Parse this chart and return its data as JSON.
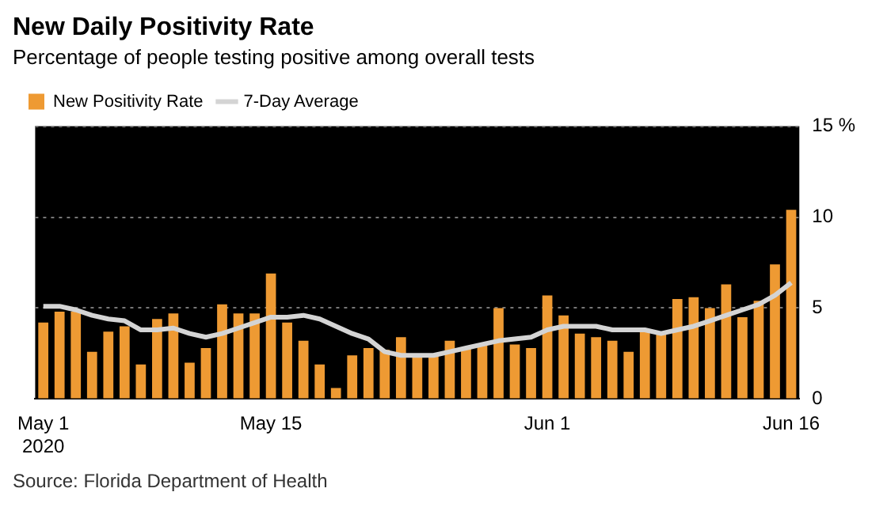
{
  "chart_data": {
    "type": "bar",
    "title": "New Daily Positivity Rate",
    "subtitle": "Percentage of people testing positive among overall tests",
    "x": [
      "2020-05-01",
      "2020-05-02",
      "2020-05-03",
      "2020-05-04",
      "2020-05-05",
      "2020-05-06",
      "2020-05-07",
      "2020-05-08",
      "2020-05-09",
      "2020-05-10",
      "2020-05-11",
      "2020-05-12",
      "2020-05-13",
      "2020-05-14",
      "2020-05-15",
      "2020-05-16",
      "2020-05-17",
      "2020-05-18",
      "2020-05-19",
      "2020-05-20",
      "2020-05-21",
      "2020-05-22",
      "2020-05-23",
      "2020-05-24",
      "2020-05-25",
      "2020-05-26",
      "2020-05-27",
      "2020-05-28",
      "2020-05-29",
      "2020-05-30",
      "2020-05-31",
      "2020-06-01",
      "2020-06-02",
      "2020-06-03",
      "2020-06-04",
      "2020-06-05",
      "2020-06-06",
      "2020-06-07",
      "2020-06-08",
      "2020-06-09",
      "2020-06-10",
      "2020-06-11",
      "2020-06-12",
      "2020-06-13",
      "2020-06-14",
      "2020-06-15",
      "2020-06-16"
    ],
    "series": [
      {
        "name": "New Positivity Rate",
        "color": "#ee9a33",
        "values": [
          4.2,
          4.8,
          4.8,
          2.6,
          3.7,
          4.0,
          1.9,
          4.4,
          4.7,
          2.0,
          2.8,
          5.2,
          4.7,
          4.7,
          6.9,
          4.2,
          3.2,
          1.9,
          0.6,
          2.4,
          2.8,
          2.7,
          3.4,
          2.3,
          2.4,
          3.2,
          2.8,
          3.0,
          5.0,
          3.0,
          2.8,
          5.7,
          4.6,
          3.6,
          3.4,
          3.2,
          2.6,
          3.7,
          3.6,
          5.5,
          5.6,
          5.0,
          6.3,
          4.5,
          5.4,
          7.4,
          10.4
        ]
      },
      {
        "name": "7-Day Average",
        "type": "line",
        "color": "#d4d4d4",
        "values": [
          5.1,
          5.1,
          4.9,
          4.6,
          4.4,
          4.3,
          3.8,
          3.8,
          3.9,
          3.6,
          3.4,
          3.6,
          3.9,
          4.2,
          4.5,
          4.5,
          4.6,
          4.4,
          4.0,
          3.6,
          3.3,
          2.6,
          2.4,
          2.4,
          2.4,
          2.6,
          2.8,
          3.0,
          3.2,
          3.3,
          3.4,
          3.8,
          4.0,
          4.0,
          4.0,
          3.8,
          3.8,
          3.8,
          3.6,
          3.8,
          4.0,
          4.3,
          4.6,
          4.9,
          5.2,
          5.7,
          6.4
        ]
      }
    ],
    "xlim": [
      "2020-04-30T12:00",
      "2020-06-16T12:00"
    ],
    "xticks": [
      {
        "value": "2020-05-01",
        "label": "May 1\n2020"
      },
      {
        "value": "2020-05-15",
        "label": "May 15"
      },
      {
        "value": "2020-06-01",
        "label": "Jun 1"
      },
      {
        "value": "2020-06-16",
        "label": "Jun 16"
      }
    ],
    "ylim": [
      0,
      15
    ],
    "yticks": [
      0,
      5,
      10,
      {
        "value": 15,
        "label": "15 %"
      }
    ],
    "grid": "y",
    "legend": "top left",
    "marker": "none",
    "annotations": [
      "Source: Florida Department of Health"
    ]
  }
}
